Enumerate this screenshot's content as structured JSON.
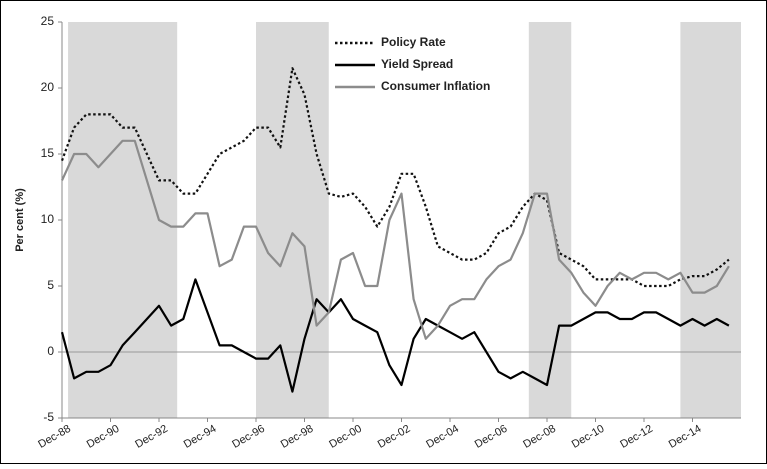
{
  "chart_data": {
    "type": "line",
    "y_label": "Per cent (%)",
    "categories": [
      "Dec-88",
      null,
      null,
      null,
      "Dec-90",
      null,
      null,
      null,
      "Dec-92",
      null,
      null,
      null,
      "Dec-94",
      null,
      null,
      null,
      "Dec-96",
      null,
      null,
      null,
      "Dec-98",
      null,
      null,
      null,
      "Dec-00",
      null,
      null,
      null,
      "Dec-02",
      null,
      null,
      null,
      "Dec-04",
      null,
      null,
      null,
      "Dec-06",
      null,
      null,
      null,
      "Dec-08",
      null,
      null,
      null,
      "Dec-10",
      null,
      null,
      null,
      "Dec-12",
      null,
      null,
      null,
      "Dec-14",
      null,
      null,
      null
    ],
    "series": [
      {
        "name": "Policy Rate",
        "color": "#111111",
        "line_style": "dotted",
        "values": [
          14.5,
          17,
          18,
          18,
          18,
          17,
          17,
          15,
          13,
          13,
          12,
          12,
          13.5,
          15,
          15.5,
          16,
          17,
          17,
          15.5,
          21.5,
          19.5,
          15,
          12,
          11.75,
          12,
          11,
          9.5,
          11,
          13.5,
          13.5,
          11,
          8,
          7.5,
          7,
          7,
          7.5,
          9,
          9.5,
          11,
          12,
          11.5,
          7.5,
          7,
          6.5,
          5.5,
          5.5,
          5.5,
          5.5,
          5,
          5,
          5,
          5.5,
          5.75,
          5.75,
          6.25,
          7
        ]
      },
      {
        "name": "Yield Spread",
        "color": "#000000",
        "line_style": "solid",
        "values": [
          1.5,
          -2,
          -1.5,
          -1.5,
          -1,
          0.5,
          1.5,
          2.5,
          3.5,
          2,
          2.5,
          5.5,
          3,
          0.5,
          0.5,
          0,
          -0.5,
          -0.5,
          0.5,
          -3,
          1,
          4,
          3,
          4,
          2.5,
          2,
          1.5,
          -1,
          -2.5,
          1,
          2.5,
          2,
          1.5,
          1,
          1.5,
          0,
          -1.5,
          -2,
          -1.5,
          -2,
          -2.5,
          2,
          2,
          2.5,
          3,
          3,
          2.5,
          2.5,
          3,
          3,
          2.5,
          2,
          2.5,
          2,
          2.5,
          2
        ]
      },
      {
        "name": "Consumer Inflation",
        "color": "#8c8c8c",
        "line_style": "solid",
        "values": [
          13,
          15,
          15,
          14,
          15,
          16,
          16,
          13,
          10,
          9.5,
          9.5,
          10.5,
          10.5,
          6.5,
          7,
          9.5,
          9.5,
          7.5,
          6.5,
          9,
          8,
          2,
          3,
          7,
          7.5,
          5,
          5,
          10,
          12,
          4,
          1,
          2,
          3.5,
          4,
          4,
          5.5,
          6.5,
          7,
          9,
          12,
          12,
          7,
          6,
          4.5,
          3.5,
          5,
          6,
          5.5,
          6,
          6,
          5.5,
          6,
          4.5,
          4.5,
          5,
          6.5
        ]
      }
    ],
    "shaded_periods": [
      {
        "start": 0.5,
        "end": 9.5
      },
      {
        "start": 16,
        "end": 22
      },
      {
        "start": 38.5,
        "end": 42
      },
      {
        "start": 51,
        "end": 56
      }
    ],
    "shade_color": "#d9d9d9",
    "ylim": [
      -5,
      25
    ],
    "yticks": [
      -5,
      0,
      5,
      10,
      15,
      20,
      25
    ],
    "legend": "top"
  }
}
